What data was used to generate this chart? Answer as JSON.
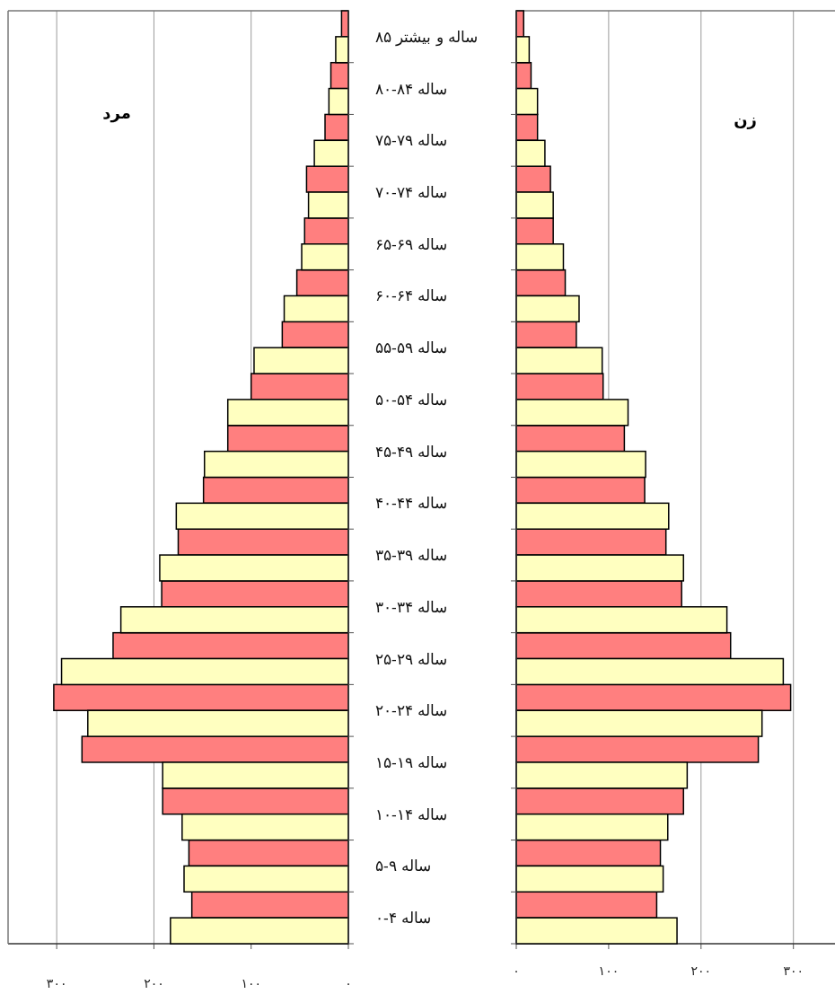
{
  "chart_data": [
    {
      "type": "bar",
      "orientation": "horizontal",
      "title": "مرد",
      "grid": "x",
      "categories": [
        "۸۵ ساله و بیشتر",
        "۸۰-۸۴ ساله",
        "۷۵-۷۹ ساله",
        "۷۰-۷۴ ساله",
        "۶۵-۶۹ ساله",
        "۶۰-۶۴ ساله",
        "۵۵-۵۹ ساله",
        "۵۰-۵۴ ساله",
        "۴۵-۴۹ ساله",
        "۴۰-۴۴ ساله",
        "۳۵-۳۹ ساله",
        "۳۰-۳۴ ساله",
        "۲۵-۲۹ ساله",
        "۲۰-۲۴ ساله",
        "۱۵-۱۹ ساله",
        "۱۰-۱۴ ساله",
        "۵-۹ ساله",
        "۰-۴ ساله"
      ],
      "xlim": [
        350,
        0
      ],
      "xticks": [
        {
          "value": 300,
          "label": "۳۰۰"
        },
        {
          "value": 200,
          "label": "۲۰۰"
        },
        {
          "value": 100,
          "label": "۱۰۰"
        },
        {
          "value": 0,
          "label": "۰"
        }
      ],
      "series": [
        {
          "color": "#ff7f7f",
          "values": [
            7,
            18,
            24,
            43,
            45,
            53,
            68,
            100,
            124,
            149,
            175,
            192,
            242,
            303,
            274,
            191,
            164,
            161
          ]
        },
        {
          "color": "#ffffc0",
          "values": [
            13,
            20,
            35,
            41,
            48,
            66,
            97,
            124,
            148,
            177,
            194,
            234,
            295,
            268,
            191,
            171,
            169,
            183
          ]
        }
      ]
    },
    {
      "type": "bar",
      "orientation": "horizontal",
      "title": "زن",
      "grid": "x",
      "xlim": [
        0,
        345
      ],
      "xticks": [
        {
          "value": 0,
          "label": "۰"
        },
        {
          "value": 100,
          "label": "۱۰۰"
        },
        {
          "value": 200,
          "label": "۲۰۰"
        },
        {
          "value": 300,
          "label": "۳۰۰"
        }
      ],
      "series": [
        {
          "color": "#ff7f7f",
          "values": [
            8,
            16,
            23,
            37,
            40,
            53,
            65,
            94,
            117,
            139,
            162,
            179,
            232,
            297,
            262,
            181,
            156,
            152
          ]
        },
        {
          "color": "#ffffc0",
          "values": [
            14,
            23,
            31,
            40,
            51,
            68,
            93,
            121,
            140,
            165,
            181,
            228,
            289,
            266,
            185,
            164,
            159,
            174
          ]
        }
      ]
    }
  ]
}
